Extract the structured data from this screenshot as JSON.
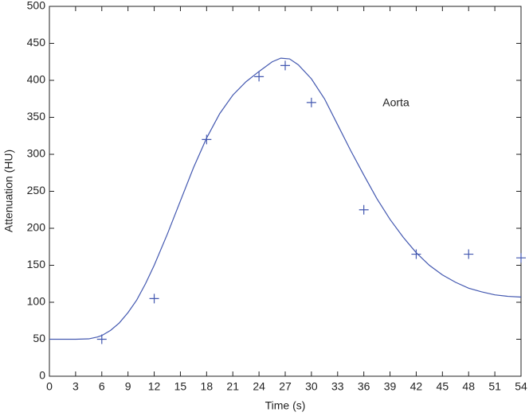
{
  "chart_data": {
    "type": "line",
    "annotation": "Aorta",
    "xlabel": "Time (s)",
    "ylabel": "Attenuation (HU)",
    "xlim": [
      0,
      54
    ],
    "xticks": [
      0,
      3,
      6,
      9,
      12,
      15,
      18,
      21,
      24,
      27,
      30,
      33,
      36,
      39,
      42,
      45,
      48,
      51,
      54
    ],
    "ylim": [
      0,
      500
    ],
    "yticks": [
      0,
      50,
      100,
      150,
      200,
      250,
      300,
      350,
      400,
      450,
      500
    ],
    "grid": false,
    "series": [
      {
        "type": "line",
        "color": "#4358b0",
        "x": [
          0,
          3,
          4.5,
          5.5,
          6,
          7,
          8,
          9,
          10,
          11,
          12,
          13.5,
          15,
          16.5,
          18,
          19.5,
          21,
          22.5,
          24,
          25.5,
          26.5,
          27.5,
          28.5,
          30,
          31.5,
          33,
          34.5,
          36,
          37.5,
          39,
          40.5,
          42,
          43.5,
          45,
          46.5,
          48,
          49.5,
          51,
          52.5,
          54
        ],
        "values": [
          50,
          50,
          50.5,
          53,
          55,
          62,
          72,
          86,
          103,
          125,
          150,
          192,
          237,
          282,
          322,
          355,
          380,
          398,
          412,
          425,
          430,
          429,
          421,
          402,
          375,
          340,
          305,
          272,
          240,
          212,
          188,
          167,
          150,
          137,
          127,
          119,
          114,
          110,
          108,
          107
        ]
      },
      {
        "type": "scatter",
        "color": "#4358b0",
        "x": [
          6,
          12,
          18,
          24,
          27,
          30,
          36,
          42,
          48,
          54
        ],
        "values": [
          50,
          105,
          320,
          405,
          420,
          370,
          225,
          165,
          165,
          160
        ]
      }
    ]
  }
}
